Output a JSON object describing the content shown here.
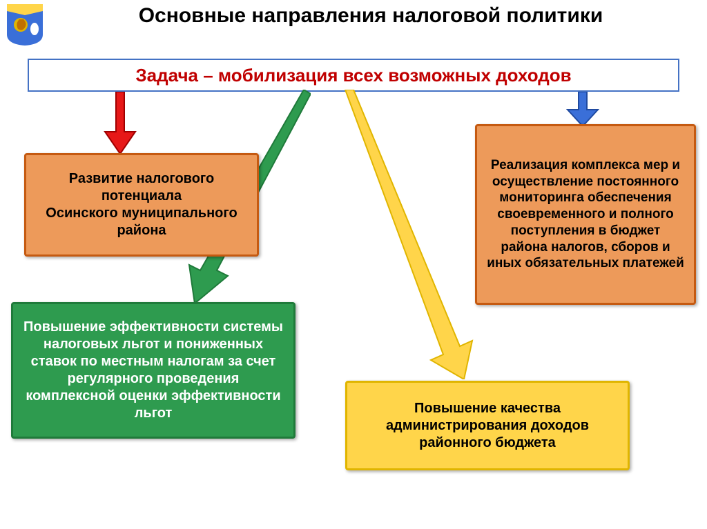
{
  "title": "Основные направления налоговой политики",
  "task": "Задача – мобилизация всех возможных доходов",
  "boxes": {
    "b1": {
      "text": "Развитие налогового потенциала\nОсинского муниципального района",
      "fill": "#ed9a5a",
      "border": "#c55a11",
      "textColor": "#000000"
    },
    "b2": {
      "text": "Реализация комплекса мер и осуществление постоянного мониторинга обеспечения своевременного и полного поступления в бюджет района налогов, сборов и иных обязательных платежей",
      "fill": "#ed9a5a",
      "border": "#c55a11",
      "textColor": "#000000"
    },
    "b3": {
      "text": "Повышение эффективности системы налоговых льгот и пониженных ставок по местным налогам за счет регулярного проведения комплексной оценки эффективности льгот",
      "fill": "#2e9b4f",
      "border": "#1f7a3a",
      "textColor": "#ffffff"
    },
    "b4": {
      "text": "Повышение качества администрирования доходов районного бюджета",
      "fill": "#ffd54a",
      "border": "#e0b500",
      "textColor": "#000000"
    }
  },
  "arrows": {
    "a1": {
      "color": "#e71818",
      "border": "#a00000"
    },
    "a2": {
      "color": "#2e9b4f",
      "border": "#1f7a3a"
    },
    "a3": {
      "color": "#ffd54a",
      "border": "#e0b500"
    },
    "a4": {
      "color": "#3a6fd8",
      "border": "#1f4aa0"
    }
  },
  "colors": {
    "taskBorder": "#4472c4",
    "taskText": "#c00000",
    "titleColor": "#000000"
  }
}
